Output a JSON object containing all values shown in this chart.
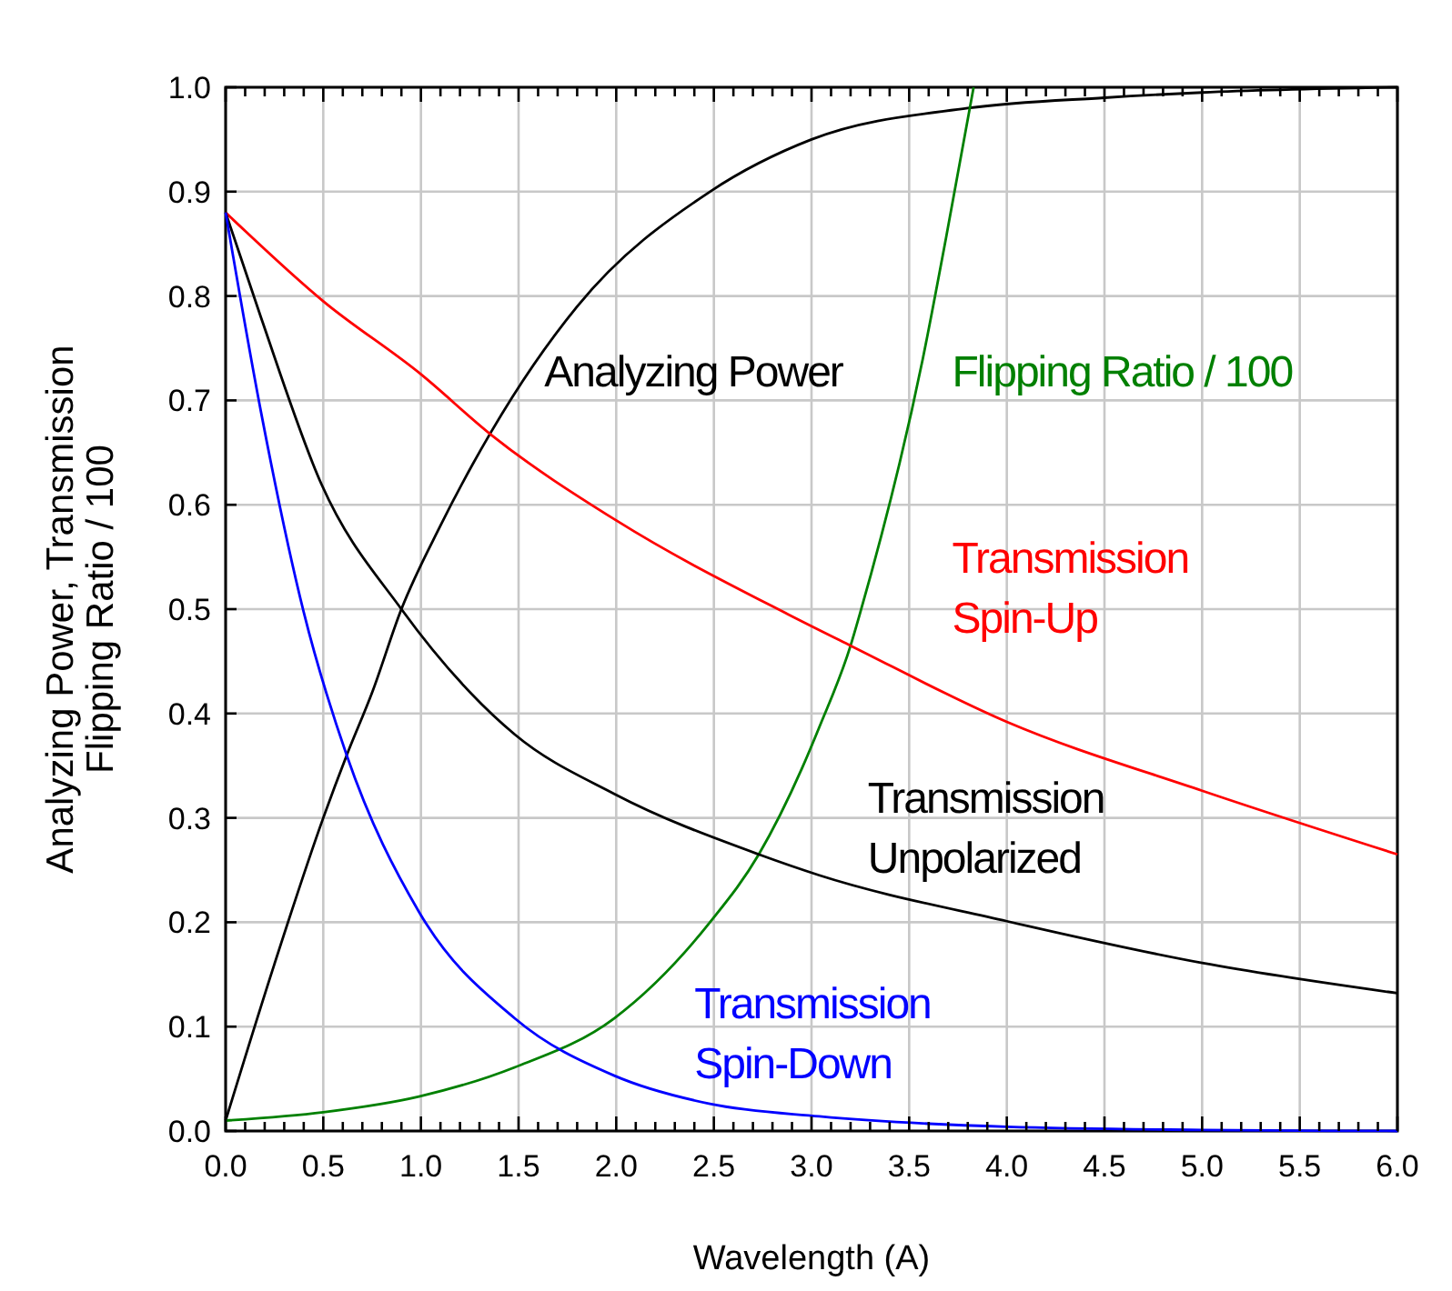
{
  "chart_data": {
    "type": "line",
    "xlabel": "Wavelength (A)",
    "ylabel": "Analyzing Power, Transmission\nFlipping Ratio / 100",
    "xlim": [
      0,
      6
    ],
    "ylim": [
      0,
      1
    ],
    "xticks": [
      {
        "value": 0,
        "label": "0.0"
      },
      {
        "value": 0.1,
        "label": null
      },
      {
        "value": 0.2,
        "label": null
      },
      {
        "value": 0.3,
        "label": null
      },
      {
        "value": 0.4,
        "label": null
      },
      {
        "value": 0.5,
        "label": "0.5"
      },
      {
        "value": 0.6,
        "label": null
      },
      {
        "value": 0.7,
        "label": null
      },
      {
        "value": 0.8,
        "label": null
      },
      {
        "value": 0.9,
        "label": null
      },
      {
        "value": 1,
        "label": "1.0"
      },
      {
        "value": 1.1,
        "label": null
      },
      {
        "value": 1.2,
        "label": null
      },
      {
        "value": 1.3,
        "label": null
      },
      {
        "value": 1.4,
        "label": null
      },
      {
        "value": 1.5,
        "label": "1.5"
      },
      {
        "value": 1.6,
        "label": null
      },
      {
        "value": 1.7,
        "label": null
      },
      {
        "value": 1.8,
        "label": null
      },
      {
        "value": 1.9,
        "label": null
      },
      {
        "value": 2,
        "label": "2.0"
      },
      {
        "value": 2.1,
        "label": null
      },
      {
        "value": 2.2,
        "label": null
      },
      {
        "value": 2.3,
        "label": null
      },
      {
        "value": 2.4,
        "label": null
      },
      {
        "value": 2.5,
        "label": "2.5"
      },
      {
        "value": 2.6,
        "label": null
      },
      {
        "value": 2.7,
        "label": null
      },
      {
        "value": 2.8,
        "label": null
      },
      {
        "value": 2.9,
        "label": null
      },
      {
        "value": 3,
        "label": "3.0"
      },
      {
        "value": 3.1,
        "label": null
      },
      {
        "value": 3.2,
        "label": null
      },
      {
        "value": 3.3,
        "label": null
      },
      {
        "value": 3.4,
        "label": null
      },
      {
        "value": 3.5,
        "label": "3.5"
      },
      {
        "value": 3.6,
        "label": null
      },
      {
        "value": 3.7,
        "label": null
      },
      {
        "value": 3.8,
        "label": null
      },
      {
        "value": 3.9,
        "label": null
      },
      {
        "value": 4,
        "label": "4.0"
      },
      {
        "value": 4.1,
        "label": null
      },
      {
        "value": 4.2,
        "label": null
      },
      {
        "value": 4.3,
        "label": null
      },
      {
        "value": 4.4,
        "label": null
      },
      {
        "value": 4.5,
        "label": "4.5"
      },
      {
        "value": 4.6,
        "label": null
      },
      {
        "value": 4.7,
        "label": null
      },
      {
        "value": 4.8,
        "label": null
      },
      {
        "value": 4.9,
        "label": null
      },
      {
        "value": 5,
        "label": "5.0"
      },
      {
        "value": 5.1,
        "label": null
      },
      {
        "value": 5.2,
        "label": null
      },
      {
        "value": 5.3,
        "label": null
      },
      {
        "value": 5.4,
        "label": null
      },
      {
        "value": 5.5,
        "label": "5.5"
      },
      {
        "value": 5.6,
        "label": null
      },
      {
        "value": 5.7,
        "label": null
      },
      {
        "value": 5.8,
        "label": null
      },
      {
        "value": 5.9,
        "label": null
      },
      {
        "value": 6,
        "label": "6.0"
      }
    ],
    "yticks": [
      {
        "value": 0,
        "label": "0.0"
      },
      {
        "value": 0.1,
        "label": "0.1"
      },
      {
        "value": 0.2,
        "label": "0.2"
      },
      {
        "value": 0.3,
        "label": "0.3"
      },
      {
        "value": 0.4,
        "label": "0.4"
      },
      {
        "value": 0.5,
        "label": "0.5"
      },
      {
        "value": 0.6,
        "label": "0.6"
      },
      {
        "value": 0.7,
        "label": "0.7"
      },
      {
        "value": 0.8,
        "label": "0.8"
      },
      {
        "value": 0.9,
        "label": "0.9"
      },
      {
        "value": 1,
        "label": "1.0"
      }
    ],
    "grid": true,
    "legend": false,
    "marker": "none",
    "line_style": "solid",
    "series": [
      {
        "name": "Analyzing Power",
        "color": "#000000",
        "x": [
          0,
          0.25,
          0.5,
          0.62,
          0.75,
          0.9,
          1.1,
          1.36,
          1.8,
          2.48,
          3,
          3.8,
          4.5,
          5,
          6
        ],
        "values": [
          0.01,
          0.16,
          0.3,
          0.36,
          0.42,
          0.5,
          0.58,
          0.67,
          0.79,
          0.9,
          0.95,
          0.98,
          0.99,
          0.995,
          1.0
        ]
      },
      {
        "name": "Flipping Ratio / 100",
        "color": "#008000",
        "x": [
          0,
          0.5,
          0.99,
          1.48,
          1.99,
          2.48,
          2.73,
          2.95,
          3.04,
          3.2,
          3.25,
          3.57,
          3.69,
          3.83
        ],
        "values": [
          0.01,
          0.018,
          0.033,
          0.061,
          0.108,
          0.2,
          0.265,
          0.347,
          0.387,
          0.465,
          0.497,
          0.74,
          0.857,
          1.0
        ]
      },
      {
        "name": "Transmission\nSpin-Up",
        "color": "#ff0000",
        "x": [
          0,
          0.5,
          1,
          1.36,
          2,
          2.88,
          3.2,
          4,
          5,
          6
        ],
        "values": [
          0.88,
          0.795,
          0.725,
          0.667,
          0.585,
          0.495,
          0.465,
          0.392,
          0.326,
          0.265
        ]
      },
      {
        "name": "Transmission\nUnpolarized",
        "color": "#000000",
        "x": [
          0,
          0.18,
          0.49,
          0.9,
          1.48,
          1.99,
          2.73,
          3.04,
          4,
          5,
          6
        ],
        "values": [
          0.88,
          0.78,
          0.62,
          0.5,
          0.38,
          0.323,
          0.265,
          0.245,
          0.201,
          0.161,
          0.132
        ]
      },
      {
        "name": "Transmission\nSpin-Down",
        "color": "#0000ff",
        "x": [
          0,
          0.18,
          0.4,
          0.62,
          0.99,
          1.48,
          1.99,
          2.48,
          3.04,
          4,
          5,
          6
        ],
        "values": [
          0.88,
          0.69,
          0.497,
          0.36,
          0.21,
          0.108,
          0.053,
          0.026,
          0.014,
          0.004,
          0.001,
          0
        ]
      }
    ]
  }
}
